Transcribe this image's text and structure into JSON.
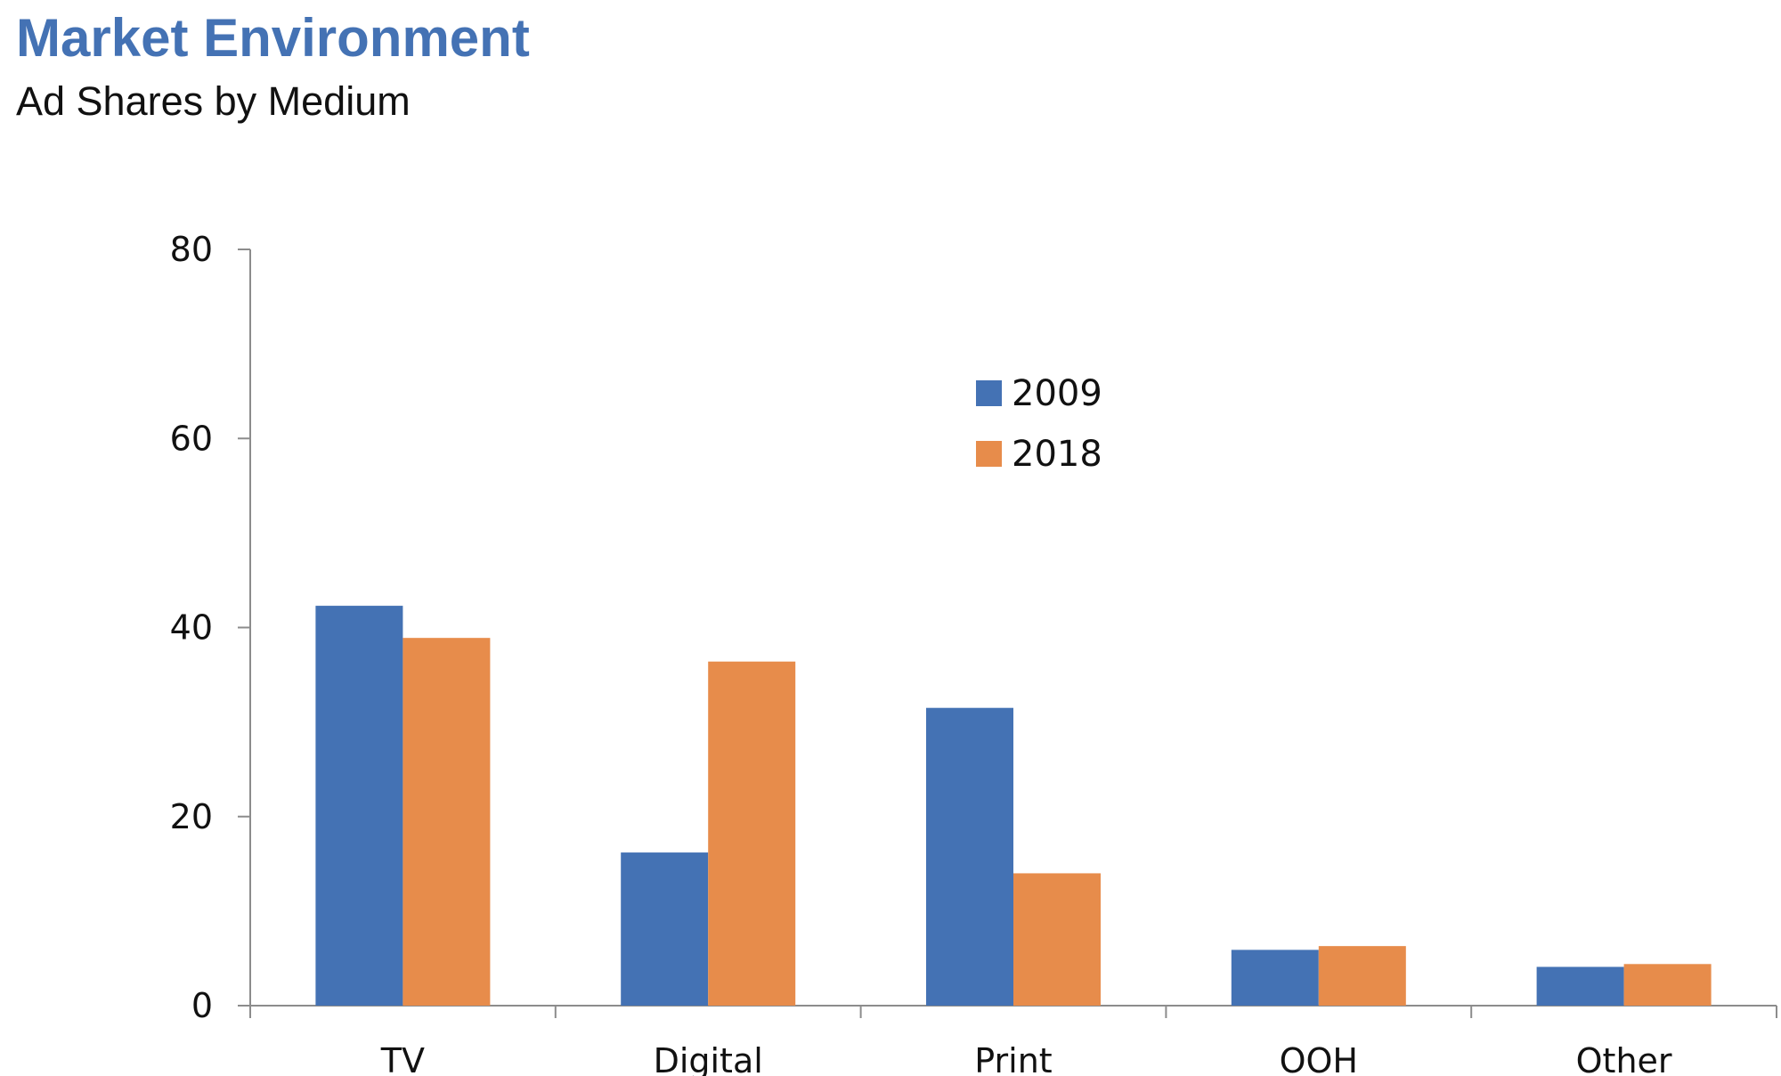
{
  "header": {
    "title": "Market Environment",
    "subtitle": "Ad Shares by Medium"
  },
  "colors": {
    "title": "#4472b4",
    "series_2009": "#4472b4",
    "series_2018": "#e78c4b",
    "axis": "#8c8c8c"
  },
  "chart_data": {
    "type": "bar",
    "title": "",
    "xlabel": "",
    "ylabel": "",
    "categories": [
      "TV",
      "Digital",
      "Print",
      "OOH",
      "Other"
    ],
    "series": [
      {
        "name": "2009",
        "color": "#4472b4",
        "values": [
          42.3,
          16.2,
          31.5,
          5.9,
          4.1
        ]
      },
      {
        "name": "2018",
        "color": "#e78c4b",
        "values": [
          38.9,
          36.4,
          14.0,
          6.3,
          4.4
        ]
      }
    ],
    "ylim": [
      0,
      80
    ],
    "yticks": [
      0,
      20,
      40,
      60,
      80
    ],
    "grid": false,
    "legend_position": "top-center"
  }
}
